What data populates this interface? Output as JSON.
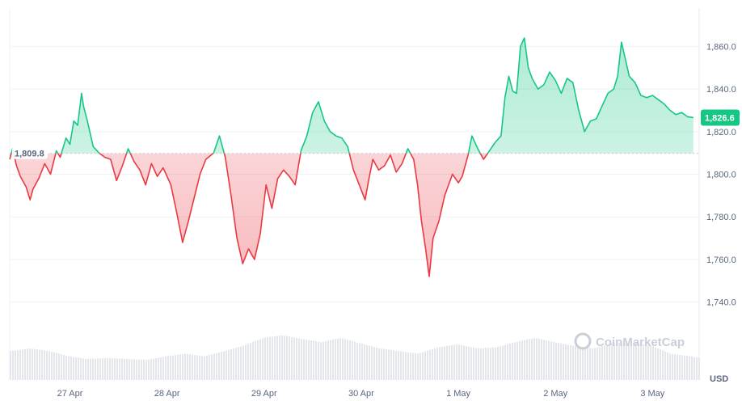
{
  "chart_data": {
    "type": "area",
    "title": "",
    "xlabel": "",
    "ylabel": "",
    "unit_label": "USD",
    "ylim": [
      1730,
      1878
    ],
    "y_ticks": [
      "1,740.0",
      "1,760.0",
      "1,780.0",
      "1,800.0",
      "1,820.0",
      "1,840.0",
      "1,860.0"
    ],
    "y_tick_values": [
      1740,
      1760,
      1780,
      1800,
      1820,
      1840,
      1860
    ],
    "x_ticks": [
      "27 Apr",
      "28 Apr",
      "29 Apr",
      "30 Apr",
      "1 May",
      "2 May",
      "3 May"
    ],
    "x_tick_values": [
      0.62,
      1.62,
      2.62,
      3.62,
      4.62,
      5.62,
      6.62
    ],
    "x_range": [
      0,
      7.1
    ],
    "reference_value": 1809.8,
    "reference_label": "1,809.8",
    "current_value": 1826.6,
    "current_label": "1,826.6",
    "watermark": "CoinMarketCap",
    "colors": {
      "up": "#16c784",
      "down": "#ea3943",
      "up_fill": "#16c784",
      "down_fill": "#ea3943",
      "grid": "#eff2f5",
      "axis_text": "#58667e",
      "volume": "#e3e6ea"
    },
    "series": [
      {
        "values": [
          [
            0.0,
            1807
          ],
          [
            0.03,
            1812
          ],
          [
            0.07,
            1804
          ],
          [
            0.11,
            1799
          ],
          [
            0.17,
            1794
          ],
          [
            0.21,
            1788
          ],
          [
            0.24,
            1793
          ],
          [
            0.3,
            1798
          ],
          [
            0.36,
            1805
          ],
          [
            0.42,
            1800
          ],
          [
            0.48,
            1811
          ],
          [
            0.52,
            1808
          ],
          [
            0.58,
            1817
          ],
          [
            0.62,
            1814
          ],
          [
            0.66,
            1825
          ],
          [
            0.7,
            1823
          ],
          [
            0.74,
            1838
          ],
          [
            0.76,
            1832
          ],
          [
            0.8,
            1825
          ],
          [
            0.86,
            1813
          ],
          [
            0.92,
            1810
          ],
          [
            0.98,
            1808
          ],
          [
            1.04,
            1807
          ],
          [
            1.1,
            1797
          ],
          [
            1.16,
            1804
          ],
          [
            1.22,
            1812
          ],
          [
            1.28,
            1806
          ],
          [
            1.34,
            1802
          ],
          [
            1.4,
            1795
          ],
          [
            1.46,
            1805
          ],
          [
            1.52,
            1799
          ],
          [
            1.58,
            1803
          ],
          [
            1.66,
            1795
          ],
          [
            1.72,
            1782
          ],
          [
            1.78,
            1768
          ],
          [
            1.84,
            1778
          ],
          [
            1.9,
            1789
          ],
          [
            1.96,
            1800
          ],
          [
            2.02,
            1807
          ],
          [
            2.1,
            1810
          ],
          [
            2.16,
            1818
          ],
          [
            2.22,
            1808
          ],
          [
            2.28,
            1790
          ],
          [
            2.34,
            1770
          ],
          [
            2.4,
            1758
          ],
          [
            2.46,
            1765
          ],
          [
            2.52,
            1760
          ],
          [
            2.58,
            1772
          ],
          [
            2.64,
            1795
          ],
          [
            2.7,
            1784
          ],
          [
            2.76,
            1798
          ],
          [
            2.82,
            1802
          ],
          [
            2.88,
            1799
          ],
          [
            2.94,
            1795
          ],
          [
            3.0,
            1811
          ],
          [
            3.06,
            1818
          ],
          [
            3.12,
            1829
          ],
          [
            3.18,
            1834
          ],
          [
            3.24,
            1825
          ],
          [
            3.3,
            1820
          ],
          [
            3.36,
            1818
          ],
          [
            3.42,
            1817
          ],
          [
            3.48,
            1813
          ],
          [
            3.54,
            1802
          ],
          [
            3.6,
            1795
          ],
          [
            3.66,
            1788
          ],
          [
            3.7,
            1798
          ],
          [
            3.74,
            1807
          ],
          [
            3.8,
            1802
          ],
          [
            3.86,
            1804
          ],
          [
            3.92,
            1809
          ],
          [
            3.98,
            1801
          ],
          [
            4.04,
            1805
          ],
          [
            4.1,
            1812
          ],
          [
            4.16,
            1807
          ],
          [
            4.2,
            1795
          ],
          [
            4.24,
            1778
          ],
          [
            4.28,
            1766
          ],
          [
            4.32,
            1752
          ],
          [
            4.36,
            1770
          ],
          [
            4.42,
            1778
          ],
          [
            4.48,
            1790
          ],
          [
            4.56,
            1800
          ],
          [
            4.62,
            1796
          ],
          [
            4.66,
            1799
          ],
          [
            4.72,
            1809
          ],
          [
            4.76,
            1818
          ],
          [
            4.82,
            1812
          ],
          [
            4.88,
            1807
          ],
          [
            4.94,
            1811
          ],
          [
            5.0,
            1815
          ],
          [
            5.06,
            1818
          ],
          [
            5.1,
            1836
          ],
          [
            5.14,
            1846
          ],
          [
            5.18,
            1839
          ],
          [
            5.22,
            1838
          ],
          [
            5.26,
            1860
          ],
          [
            5.3,
            1864
          ],
          [
            5.34,
            1850
          ],
          [
            5.38,
            1845
          ],
          [
            5.44,
            1840
          ],
          [
            5.5,
            1842
          ],
          [
            5.56,
            1848
          ],
          [
            5.62,
            1844
          ],
          [
            5.68,
            1838
          ],
          [
            5.74,
            1845
          ],
          [
            5.8,
            1843
          ],
          [
            5.86,
            1830
          ],
          [
            5.92,
            1820
          ],
          [
            5.98,
            1825
          ],
          [
            6.04,
            1826
          ],
          [
            6.1,
            1832
          ],
          [
            6.16,
            1838
          ],
          [
            6.22,
            1840
          ],
          [
            6.26,
            1846
          ],
          [
            6.3,
            1862
          ],
          [
            6.34,
            1854
          ],
          [
            6.38,
            1846
          ],
          [
            6.44,
            1843
          ],
          [
            6.5,
            1837
          ],
          [
            6.56,
            1836
          ],
          [
            6.62,
            1837
          ],
          [
            6.68,
            1835
          ],
          [
            6.74,
            1833
          ],
          [
            6.8,
            1830
          ],
          [
            6.86,
            1828
          ],
          [
            6.92,
            1829
          ],
          [
            6.98,
            1827
          ],
          [
            7.04,
            1826.6
          ]
        ]
      }
    ],
    "volume": [
      [
        0.0,
        0.55
      ],
      [
        0.2,
        0.6
      ],
      [
        0.4,
        0.55
      ],
      [
        0.6,
        0.45
      ],
      [
        0.8,
        0.4
      ],
      [
        1.0,
        0.42
      ],
      [
        1.2,
        0.4
      ],
      [
        1.4,
        0.38
      ],
      [
        1.6,
        0.45
      ],
      [
        1.8,
        0.5
      ],
      [
        2.0,
        0.45
      ],
      [
        2.2,
        0.55
      ],
      [
        2.4,
        0.65
      ],
      [
        2.6,
        0.8
      ],
      [
        2.8,
        0.85
      ],
      [
        3.0,
        0.78
      ],
      [
        3.2,
        0.72
      ],
      [
        3.4,
        0.8
      ],
      [
        3.6,
        0.7
      ],
      [
        3.8,
        0.6
      ],
      [
        4.0,
        0.55
      ],
      [
        4.2,
        0.5
      ],
      [
        4.4,
        0.62
      ],
      [
        4.6,
        0.68
      ],
      [
        4.8,
        0.6
      ],
      [
        5.0,
        0.62
      ],
      [
        5.2,
        0.72
      ],
      [
        5.4,
        0.8
      ],
      [
        5.6,
        0.72
      ],
      [
        5.8,
        0.65
      ],
      [
        6.0,
        0.6
      ],
      [
        6.2,
        0.7
      ],
      [
        6.4,
        0.72
      ],
      [
        6.6,
        0.65
      ],
      [
        6.8,
        0.5
      ],
      [
        7.0,
        0.45
      ],
      [
        7.1,
        0.42
      ]
    ]
  }
}
